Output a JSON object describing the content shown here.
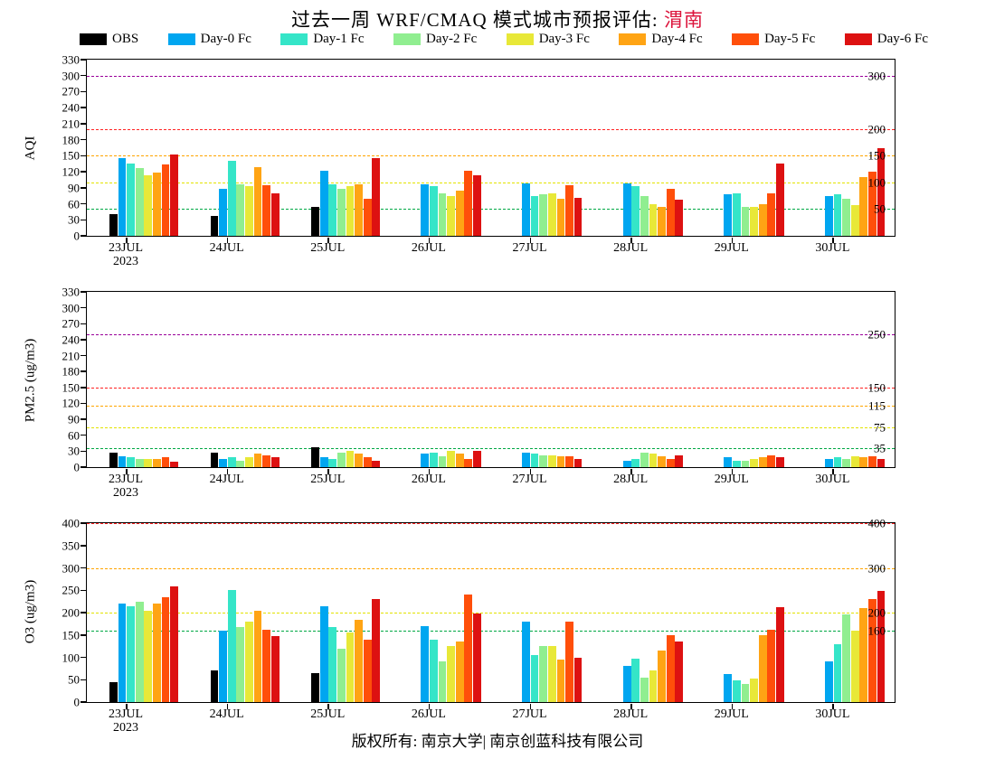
{
  "title": {
    "text": "过去一周 WRF/CMAQ 模式城市预报评估: ",
    "highlight": "渭南",
    "highlight_color": "#DC143C"
  },
  "legend": {
    "items": [
      {
        "label": "OBS",
        "color": "#000000"
      },
      {
        "label": "Day-0 Fc",
        "color": "#00A6F0"
      },
      {
        "label": "Day-1 Fc",
        "color": "#35E5C8"
      },
      {
        "label": "Day-2 Fc",
        "color": "#90EE90"
      },
      {
        "label": "Day-3 Fc",
        "color": "#E8E838"
      },
      {
        "label": "Day-4 Fc",
        "color": "#FFA414"
      },
      {
        "label": "Day-5 Fc",
        "color": "#FF4F0A"
      },
      {
        "label": "Day-6 Fc",
        "color": "#DD1111"
      }
    ]
  },
  "footer": {
    "text": "版权所有: 南京大学| 南京创蓝科技有限公司"
  },
  "chart_data": [
    {
      "type": "bar",
      "ylabel": "AQI",
      "ylim": [
        0,
        330
      ],
      "ytick_step": 30,
      "grid": false,
      "legend_position": "top",
      "categories": [
        "23JUL",
        "24JUL",
        "25JUL",
        "26JUL",
        "27JUL",
        "28JUL",
        "29JUL",
        "30JUL"
      ],
      "first_category_year": "2023",
      "series": [
        {
          "name": "OBS",
          "values": [
            40,
            38,
            55,
            0,
            0,
            0,
            0,
            0
          ]
        },
        {
          "name": "Day-0 Fc",
          "values": [
            145,
            88,
            122,
            96,
            98,
            99,
            78,
            75
          ]
        },
        {
          "name": "Day-1 Fc",
          "values": [
            135,
            140,
            97,
            93,
            75,
            93,
            80,
            78
          ]
        },
        {
          "name": "Day-2 Fc",
          "values": [
            127,
            96,
            88,
            80,
            78,
            75,
            55,
            70
          ]
        },
        {
          "name": "Day-3 Fc",
          "values": [
            113,
            93,
            93,
            75,
            80,
            60,
            55,
            58
          ]
        },
        {
          "name": "Day-4 Fc",
          "values": [
            119,
            128,
            97,
            85,
            70,
            55,
            60,
            110
          ]
        },
        {
          "name": "Day-5 Fc",
          "values": [
            133,
            94,
            70,
            122,
            95,
            88,
            80,
            120
          ]
        },
        {
          "name": "Day-6 Fc",
          "values": [
            152,
            79,
            145,
            113,
            71,
            68,
            135,
            165
          ]
        }
      ],
      "thresholds": [
        {
          "value": 50,
          "color": "#00A844",
          "label": "50"
        },
        {
          "value": 100,
          "color": "#E3E300",
          "label": "100"
        },
        {
          "value": 150,
          "color": "#FFA500",
          "label": "150"
        },
        {
          "value": 200,
          "color": "#FF2222",
          "label": "200"
        },
        {
          "value": 300,
          "color": "#990099",
          "label": "300"
        }
      ]
    },
    {
      "type": "bar",
      "ylabel": "PM2.5 (ug/m3)",
      "ylim": [
        0,
        330
      ],
      "ytick_step": 30,
      "grid": false,
      "legend_position": "top",
      "categories": [
        "23JUL",
        "24JUL",
        "25JUL",
        "26JUL",
        "27JUL",
        "28JUL",
        "29JUL",
        "30JUL"
      ],
      "first_category_year": "2023",
      "series": [
        {
          "name": "OBS",
          "values": [
            28,
            28,
            38,
            0,
            0,
            0,
            0,
            0
          ]
        },
        {
          "name": "Day-0 Fc",
          "values": [
            20,
            15,
            18,
            25,
            28,
            12,
            18,
            15
          ]
        },
        {
          "name": "Day-1 Fc",
          "values": [
            18,
            18,
            15,
            28,
            25,
            15,
            12,
            18
          ]
        },
        {
          "name": "Day-2 Fc",
          "values": [
            16,
            12,
            28,
            20,
            22,
            28,
            12,
            15
          ]
        },
        {
          "name": "Day-3 Fc",
          "values": [
            15,
            18,
            30,
            30,
            22,
            25,
            15,
            20
          ]
        },
        {
          "name": "Day-4 Fc",
          "values": [
            15,
            25,
            25,
            25,
            20,
            20,
            18,
            18
          ]
        },
        {
          "name": "Day-5 Fc",
          "values": [
            18,
            22,
            18,
            15,
            20,
            15,
            22,
            20
          ]
        },
        {
          "name": "Day-6 Fc",
          "values": [
            10,
            18,
            12,
            30,
            15,
            22,
            18,
            15
          ]
        }
      ],
      "thresholds": [
        {
          "value": 35,
          "color": "#00A844",
          "label": "35"
        },
        {
          "value": 75,
          "color": "#E3E300",
          "label": "75"
        },
        {
          "value": 115,
          "color": "#FFA500",
          "label": "115"
        },
        {
          "value": 150,
          "color": "#FF2222",
          "label": "150"
        },
        {
          "value": 250,
          "color": "#990099",
          "label": "250"
        }
      ]
    },
    {
      "type": "bar",
      "ylabel": "O3 (ug/m3)",
      "ylim": [
        0,
        400
      ],
      "ytick_step": 50,
      "grid": false,
      "legend_position": "top",
      "categories": [
        "23JUL",
        "24JUL",
        "25JUL",
        "26JUL",
        "27JUL",
        "28JUL",
        "29JUL",
        "30JUL"
      ],
      "first_category_year": "2023",
      "series": [
        {
          "name": "OBS",
          "values": [
            45,
            70,
            65,
            0,
            0,
            0,
            0,
            0
          ]
        },
        {
          "name": "Day-0 Fc",
          "values": [
            220,
            160,
            215,
            170,
            180,
            80,
            62,
            90
          ]
        },
        {
          "name": "Day-1 Fc",
          "values": [
            215,
            250,
            168,
            140,
            105,
            97,
            48,
            130
          ]
        },
        {
          "name": "Day-2 Fc",
          "values": [
            225,
            168,
            120,
            90,
            125,
            55,
            40,
            195
          ]
        },
        {
          "name": "Day-3 Fc",
          "values": [
            205,
            180,
            155,
            125,
            125,
            70,
            52,
            160
          ]
        },
        {
          "name": "Day-4 Fc",
          "values": [
            220,
            205,
            183,
            135,
            95,
            115,
            150,
            210
          ]
        },
        {
          "name": "Day-5 Fc",
          "values": [
            235,
            162,
            140,
            240,
            180,
            150,
            162,
            230
          ]
        },
        {
          "name": "Day-6 Fc",
          "values": [
            258,
            148,
            230,
            198,
            100,
            135,
            212,
            248
          ]
        }
      ],
      "thresholds": [
        {
          "value": 160,
          "color": "#00A844",
          "label": "160"
        },
        {
          "value": 200,
          "color": "#E3E300",
          "label": "200"
        },
        {
          "value": 300,
          "color": "#FFA500",
          "label": "300"
        },
        {
          "value": 400,
          "color": "#FF2222",
          "label": "400"
        }
      ]
    }
  ]
}
